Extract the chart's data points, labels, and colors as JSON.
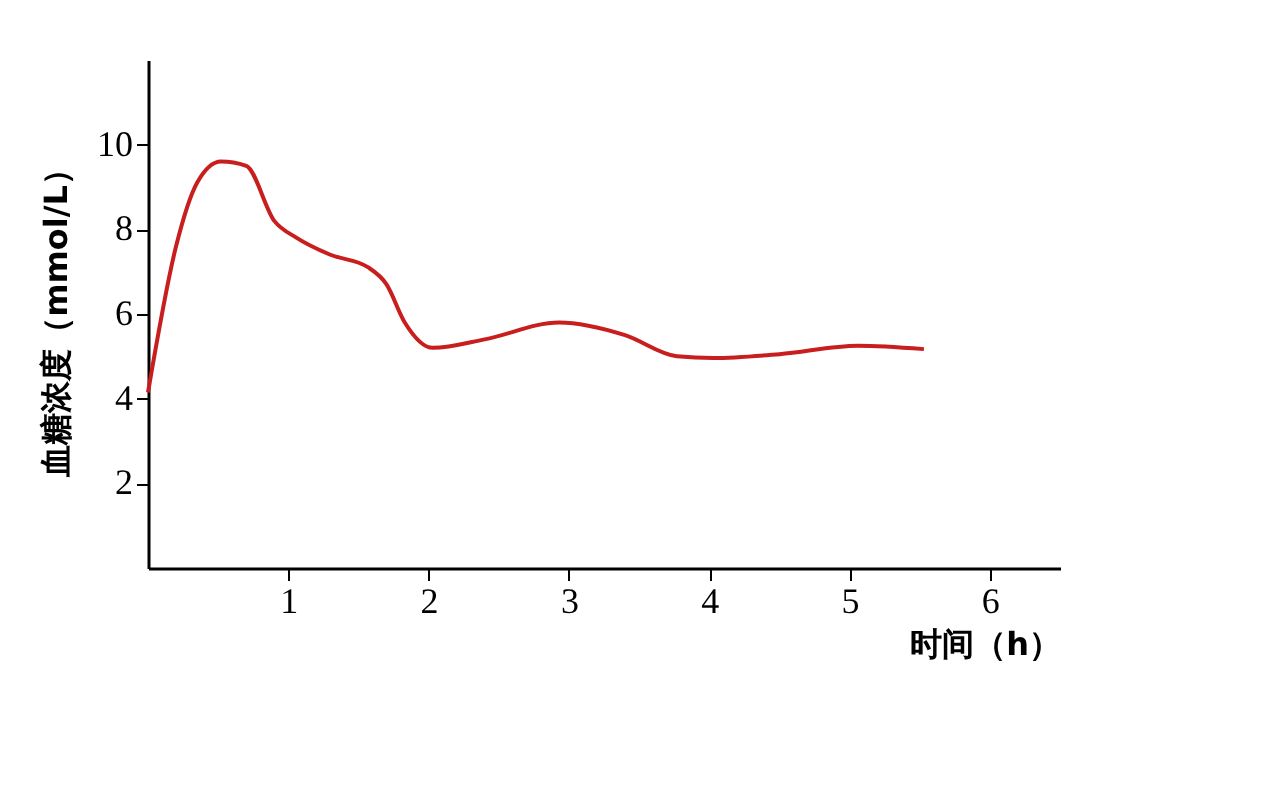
{
  "chart_data": {
    "type": "line",
    "xlabel": "时间（h）",
    "ylabel": "血糖浓度（mmol/L）",
    "x": [
      0,
      0.2,
      0.35,
      0.52,
      0.7,
      0.9,
      1.06,
      1.3,
      1.57,
      1.7,
      1.83,
      2.03,
      2.4,
      2.93,
      3.4,
      3.77,
      4.03,
      4.5,
      5.06,
      5.53
    ],
    "series": [
      {
        "color": "#c81e1e",
        "values": [
          4.15,
          7.6,
          9.1,
          9.6,
          9.5,
          8.2,
          7.8,
          7.4,
          7.1,
          6.7,
          5.8,
          5.2,
          5.4,
          5.8,
          5.5,
          5.0,
          4.96,
          5.05,
          5.25,
          5.17
        ]
      }
    ],
    "xlim": [
      0,
      6.5
    ],
    "ylim": [
      0,
      12
    ],
    "xticks": [
      1,
      2,
      3,
      4,
      5,
      6
    ],
    "yticks": [
      2,
      4,
      6,
      8,
      10
    ],
    "grid": false,
    "legend": false,
    "marker": "none",
    "line_style": "solid"
  }
}
